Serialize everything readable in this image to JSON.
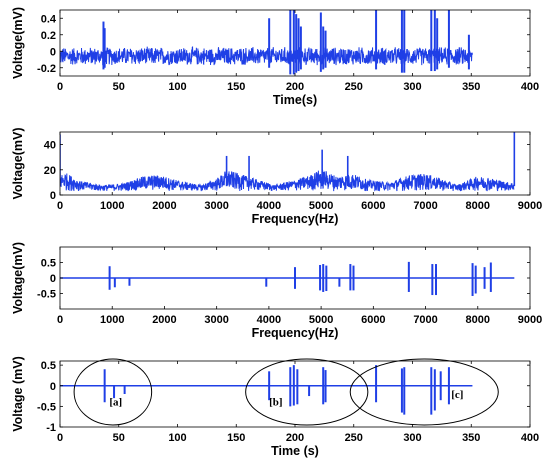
{
  "chart_data": [
    {
      "id": "p1",
      "type": "line",
      "xlabel": "Time(s)",
      "ylabel": "Voltage(mV)",
      "xlim": [
        0,
        400
      ],
      "ylim": [
        -0.3,
        0.5
      ],
      "x_ticks": [
        0,
        50,
        100,
        150,
        200,
        250,
        300,
        350,
        400
      ],
      "y_ticks": [
        0.4,
        0.2,
        0,
        -0.2
      ],
      "y_tick_labels": [
        "0.4",
        "0.2",
        "0",
        "-0.2"
      ],
      "noise": {
        "x_range": [
          0,
          351
        ],
        "baseline": -0.06,
        "amplitude": 0.12
      },
      "spikes": [
        {
          "x": 37,
          "top": 0.36,
          "bottom": -0.22
        },
        {
          "x": 38,
          "top": 0.28,
          "bottom": -0.2
        },
        {
          "x": 178,
          "top": 0.4,
          "bottom": -0.2
        },
        {
          "x": 196,
          "top": 0.5,
          "bottom": -0.28
        },
        {
          "x": 199,
          "top": 0.5,
          "bottom": -0.28
        },
        {
          "x": 201,
          "top": 0.45,
          "bottom": -0.26
        },
        {
          "x": 203,
          "top": 0.4,
          "bottom": -0.24
        },
        {
          "x": 205,
          "top": 0.3,
          "bottom": -0.22
        },
        {
          "x": 222,
          "top": 0.47,
          "bottom": -0.25
        },
        {
          "x": 224,
          "top": 0.3,
          "bottom": -0.22
        },
        {
          "x": 226,
          "top": 0.25,
          "bottom": -0.2
        },
        {
          "x": 269,
          "top": 0.5,
          "bottom": -0.22
        },
        {
          "x": 291,
          "top": 0.5,
          "bottom": -0.26
        },
        {
          "x": 293,
          "top": 0.5,
          "bottom": -0.26
        },
        {
          "x": 316,
          "top": 0.5,
          "bottom": -0.24
        },
        {
          "x": 319,
          "top": 0.5,
          "bottom": -0.24
        },
        {
          "x": 321,
          "top": 0.4,
          "bottom": -0.22
        },
        {
          "x": 331,
          "top": 0.5,
          "bottom": -0.2
        },
        {
          "x": 348,
          "top": 0.2,
          "bottom": -0.22
        }
      ]
    },
    {
      "id": "p2",
      "type": "line",
      "xlabel": "Frequency(Hz)",
      "ylabel": "Voltage(mV)",
      "xlim": [
        0,
        9000
      ],
      "ylim": [
        0,
        50
      ],
      "x_ticks": [
        0,
        1000,
        2000,
        3000,
        4000,
        5000,
        6000,
        7000,
        8000,
        9000
      ],
      "y_ticks": [
        40,
        20,
        0
      ],
      "y_tick_labels": [
        "40",
        "20",
        "0"
      ],
      "envelope": [
        [
          0,
          16
        ],
        [
          100,
          18
        ],
        [
          400,
          11
        ],
        [
          800,
          8
        ],
        [
          1200,
          9
        ],
        [
          1600,
          15
        ],
        [
          1900,
          16
        ],
        [
          2300,
          11
        ],
        [
          2700,
          8
        ],
        [
          3000,
          13
        ],
        [
          3200,
          20
        ],
        [
          3500,
          16
        ],
        [
          3800,
          12
        ],
        [
          4100,
          8
        ],
        [
          4500,
          12
        ],
        [
          4800,
          16
        ],
        [
          5000,
          21
        ],
        [
          5300,
          15
        ],
        [
          5600,
          17
        ],
        [
          5900,
          12
        ],
        [
          6300,
          10
        ],
        [
          6700,
          16
        ],
        [
          7000,
          17
        ],
        [
          7300,
          13
        ],
        [
          7600,
          8
        ],
        [
          8000,
          15
        ],
        [
          8300,
          13
        ],
        [
          8600,
          10
        ],
        [
          8690,
          10
        ]
      ],
      "floor": 3,
      "peaks": [
        {
          "x": 0,
          "y": 48
        },
        {
          "x": 3190,
          "y": 31
        },
        {
          "x": 3620,
          "y": 31
        },
        {
          "x": 5020,
          "y": 36
        },
        {
          "x": 5510,
          "y": 31
        },
        {
          "x": 8700,
          "y": 50
        }
      ]
    },
    {
      "id": "p3",
      "type": "line",
      "xlabel": "Frequency(Hz)",
      "ylabel": "Voltage(mV)",
      "xlim": [
        0,
        9000
      ],
      "ylim": [
        -1,
        1
      ],
      "x_ticks": [
        0,
        1000,
        2000,
        3000,
        4000,
        5000,
        6000,
        7000,
        8000,
        9000
      ],
      "y_ticks": [
        0.5,
        0,
        -0.5
      ],
      "y_tick_labels": [
        "0.5",
        "0",
        "-0.5"
      ],
      "line_end": 8700,
      "spikes": [
        {
          "x": 950,
          "top": 0.38,
          "bottom": -0.38
        },
        {
          "x": 1050,
          "top": 0,
          "bottom": -0.3
        },
        {
          "x": 1330,
          "top": 0,
          "bottom": -0.25
        },
        {
          "x": 3950,
          "top": 0,
          "bottom": -0.28
        },
        {
          "x": 4500,
          "top": 0.35,
          "bottom": -0.35
        },
        {
          "x": 4980,
          "top": 0.42,
          "bottom": -0.4
        },
        {
          "x": 5040,
          "top": 0.45,
          "bottom": -0.45
        },
        {
          "x": 5100,
          "top": 0.4,
          "bottom": -0.42
        },
        {
          "x": 5350,
          "top": 0,
          "bottom": -0.28
        },
        {
          "x": 5560,
          "top": 0.45,
          "bottom": -0.4
        },
        {
          "x": 5620,
          "top": 0.4,
          "bottom": -0.4
        },
        {
          "x": 6680,
          "top": 0.52,
          "bottom": -0.45
        },
        {
          "x": 7130,
          "top": 0.45,
          "bottom": -0.55
        },
        {
          "x": 7200,
          "top": 0.45,
          "bottom": -0.55
        },
        {
          "x": 7900,
          "top": 0.48,
          "bottom": -0.58
        },
        {
          "x": 7960,
          "top": 0.4,
          "bottom": -0.5
        },
        {
          "x": 8130,
          "top": 0.35,
          "bottom": -0.35
        },
        {
          "x": 8250,
          "top": 0.5,
          "bottom": -0.45
        }
      ]
    },
    {
      "id": "p4",
      "type": "line",
      "xlabel": "Time (s)",
      "ylabel": "Voltage (mV)",
      "xlim": [
        0,
        400
      ],
      "ylim": [
        -1,
        0.6
      ],
      "x_ticks": [
        0,
        50,
        100,
        150,
        200,
        250,
        300,
        350,
        400
      ],
      "y_ticks": [
        0.5,
        0,
        -0.5,
        -1
      ],
      "y_tick_labels": [
        "0.5",
        "0",
        "-0.5",
        "-1"
      ],
      "line_end": 351,
      "spikes": [
        {
          "x": 38,
          "top": 0.4,
          "bottom": -0.4
        },
        {
          "x": 46,
          "top": 0,
          "bottom": -0.3
        },
        {
          "x": 55,
          "top": 0,
          "bottom": -0.2
        },
        {
          "x": 178,
          "top": 0.35,
          "bottom": -0.35
        },
        {
          "x": 196,
          "top": 0.45,
          "bottom": -0.5
        },
        {
          "x": 199,
          "top": 0.5,
          "bottom": -0.48
        },
        {
          "x": 202,
          "top": 0.4,
          "bottom": -0.45
        },
        {
          "x": 212,
          "top": 0,
          "bottom": -0.25
        },
        {
          "x": 224,
          "top": 0.45,
          "bottom": -0.45
        },
        {
          "x": 226,
          "top": 0.38,
          "bottom": -0.4
        },
        {
          "x": 269,
          "top": 0.5,
          "bottom": -0.4
        },
        {
          "x": 291,
          "top": 0.42,
          "bottom": -0.65
        },
        {
          "x": 293,
          "top": 0.45,
          "bottom": -0.7
        },
        {
          "x": 316,
          "top": 0.45,
          "bottom": -0.7
        },
        {
          "x": 319,
          "top": 0.4,
          "bottom": -0.6
        },
        {
          "x": 324,
          "top": 0.35,
          "bottom": -0.35
        },
        {
          "x": 331,
          "top": 0.45,
          "bottom": -0.45
        }
      ],
      "annotations": [
        {
          "label": "[a]",
          "label_x": 42,
          "label_y": -0.38,
          "ellipse": {
            "cx": 45,
            "cy": -0.15,
            "rx": 33,
            "ry": 0.8
          }
        },
        {
          "label": "[b]",
          "label_x": 178,
          "label_y": -0.38,
          "ellipse": {
            "cx": 210,
            "cy": -0.15,
            "rx": 52,
            "ry": 0.8
          }
        },
        {
          "label": "[c]",
          "label_x": 333,
          "label_y": -0.2,
          "ellipse": {
            "cx": 310,
            "cy": -0.15,
            "rx": 63,
            "ry": 0.8
          }
        }
      ]
    }
  ],
  "colors": {
    "series": "#1f3fe6",
    "axis": "#000000"
  }
}
